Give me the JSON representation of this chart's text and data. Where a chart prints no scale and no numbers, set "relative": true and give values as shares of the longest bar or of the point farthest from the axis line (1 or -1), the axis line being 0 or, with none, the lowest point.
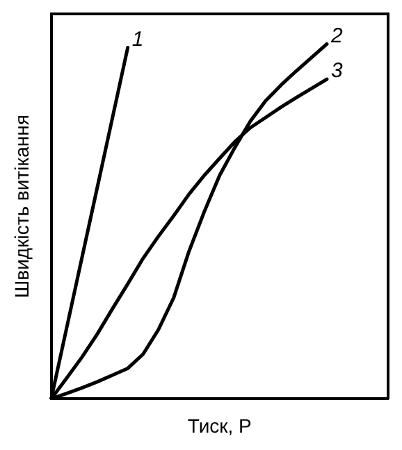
{
  "chart_data": {
    "type": "line",
    "relative": true,
    "xlabel": "Тиск, P",
    "ylabel": "Швидкість витікання",
    "legend": false,
    "grid": false,
    "marker": "none",
    "line_style": "solid",
    "categories": [
      null,
      null,
      null,
      null,
      null,
      null,
      null,
      null,
      null,
      null,
      null,
      null,
      null,
      null,
      null,
      null,
      null,
      null,
      null,
      null,
      null,
      null,
      null
    ],
    "series": [
      {
        "name": "1",
        "color": "#000000",
        "values": [
          0,
          0.198,
          0.396,
          0.594,
          0.792,
          0.99,
          null,
          null,
          null,
          null,
          null,
          null,
          null,
          null,
          null,
          null,
          null,
          null,
          null,
          null,
          null,
          null,
          null
        ]
      },
      {
        "name": "2",
        "color": "#000000",
        "values": [
          0,
          0.015,
          0.031,
          0.048,
          0.067,
          0.086,
          0.126,
          0.195,
          0.285,
          0.416,
          0.528,
          0.63,
          0.709,
          0.782,
          0.84,
          0.884,
          0.924,
          0.962,
          1,
          null,
          null,
          null,
          null
        ]
      },
      {
        "name": "3",
        "color": "#000000",
        "values": [
          0,
          0.058,
          0.117,
          0.182,
          0.254,
          0.324,
          0.396,
          0.458,
          0.516,
          0.577,
          0.63,
          0.678,
          0.725,
          0.764,
          0.793,
          0.822,
          0.849,
          0.875,
          0.901,
          null,
          null,
          null,
          null
        ]
      }
    ]
  }
}
